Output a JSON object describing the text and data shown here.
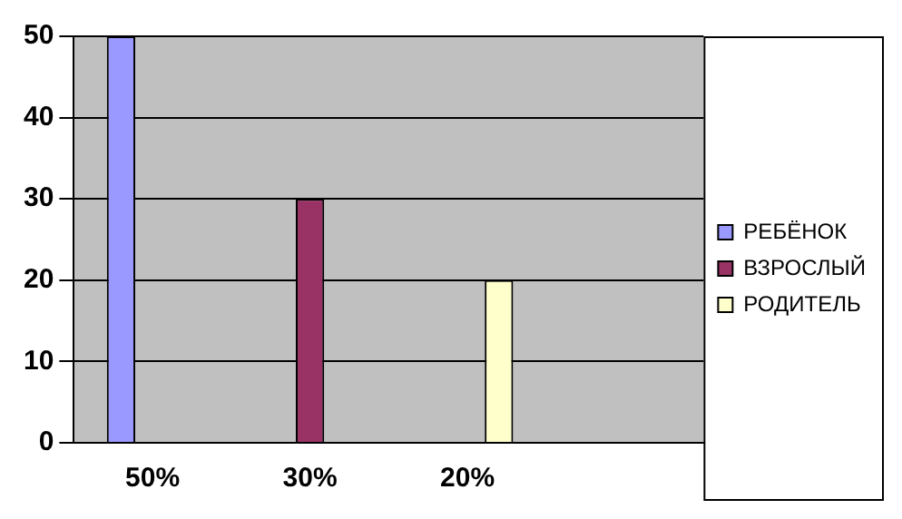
{
  "chart_data": {
    "type": "bar",
    "categories": [
      "50%",
      "30%",
      "20%",
      null
    ],
    "series": [
      {
        "name": "РЕБЁНОК",
        "color": "#9999ff",
        "values": [
          50,
          null,
          null,
          null
        ]
      },
      {
        "name": "ВЗРОСЛЫЙ",
        "color": "#993366",
        "values": [
          null,
          30,
          null,
          null
        ]
      },
      {
        "name": "РОДИТЕЛЬ",
        "color": "#ffffcc",
        "values": [
          null,
          null,
          20,
          null
        ]
      }
    ],
    "ylim": [
      0,
      50
    ],
    "yticks": [
      0,
      10,
      20,
      30,
      40,
      50
    ],
    "grid": "y",
    "legend": "right"
  }
}
